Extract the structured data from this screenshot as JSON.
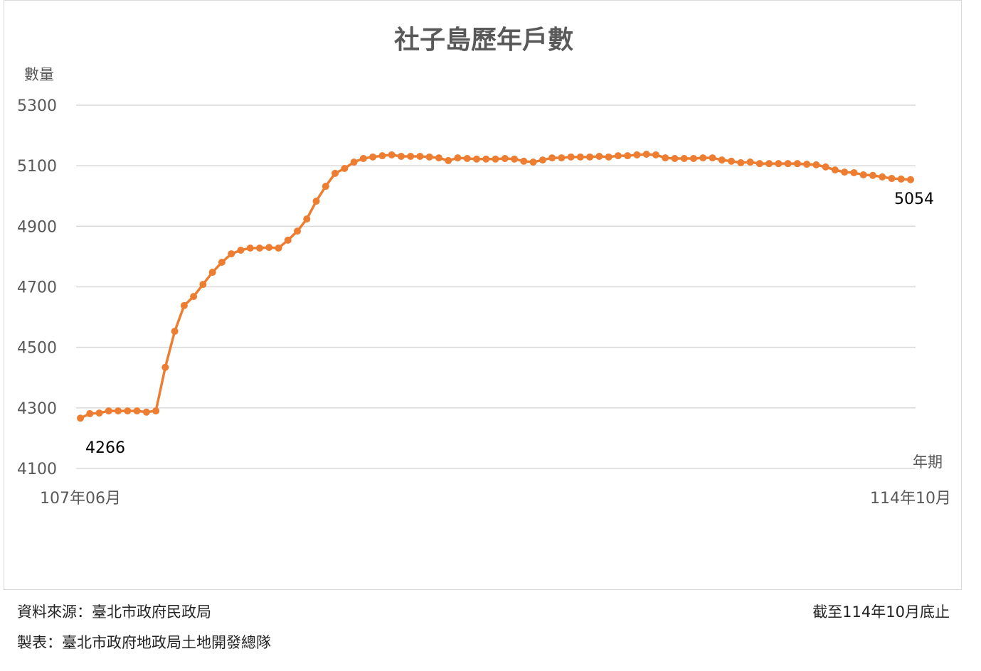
{
  "chart_data": {
    "type": "line",
    "title": "社子島歷年戶數",
    "ylabel": "數量",
    "xlabel": "年期",
    "ylim": [
      4100,
      5300
    ],
    "yticks": [
      "5300",
      "5100",
      "4900",
      "4700",
      "4500",
      "4300",
      "4100"
    ],
    "grid": true,
    "x_start_label": "107年06月",
    "x_end_label": "114年10月",
    "series_color": "#ED7D31",
    "first_label": "4266",
    "last_label": "5054",
    "values": [
      4266,
      4281,
      4283,
      4290,
      4290,
      4290,
      4290,
      4286,
      4290,
      4434,
      4553,
      4638,
      4668,
      4708,
      4748,
      4781,
      4809,
      4821,
      4828,
      4828,
      4830,
      4828,
      4854,
      4884,
      4924,
      4983,
      5032,
      5075,
      5091,
      5112,
      5124,
      5129,
      5133,
      5136,
      5131,
      5131,
      5131,
      5129,
      5126,
      5117,
      5126,
      5124,
      5122,
      5122,
      5122,
      5124,
      5122,
      5115,
      5112,
      5119,
      5126,
      5126,
      5129,
      5129,
      5129,
      5131,
      5129,
      5133,
      5133,
      5136,
      5138,
      5136,
      5126,
      5124,
      5124,
      5124,
      5126,
      5126,
      5119,
      5115,
      5110,
      5112,
      5107,
      5107,
      5107,
      5107,
      5107,
      5105,
      5103,
      5096,
      5086,
      5079,
      5077,
      5070,
      5068,
      5063,
      5058,
      5056,
      5054
    ]
  },
  "footer": {
    "source": "資料來源：臺北市政府民政局",
    "as_of": "截至114年10月底止",
    "maker": "製表：臺北市政府地政局土地開發總隊"
  }
}
